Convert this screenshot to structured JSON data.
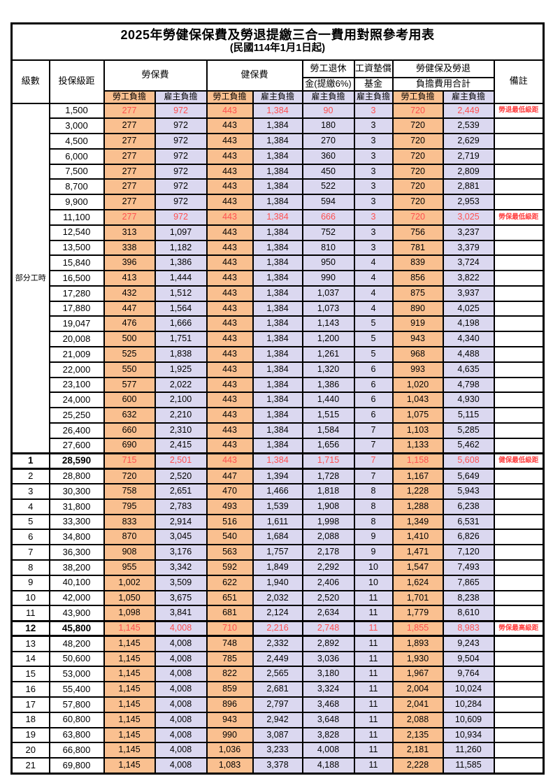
{
  "title": "2025年勞健保保費及勞退提繳三合一費用對照參考用表",
  "subtitle": "(民國114年1月1日起)",
  "colors": {
    "employee_column_bg": "#FAC090",
    "employer_column_bg": "#DBD8F0",
    "highlight_text": "#FF5050",
    "remark_text": "#FF4040",
    "border": "#000000",
    "background": "#FFFFFF"
  },
  "header": {
    "level": "級數",
    "bracket": "投保級距",
    "labor_insurance": "勞保費",
    "health_insurance": "健保費",
    "pension_line1": "勞工退休",
    "pension_line2": "金(提繳6%)",
    "fund_line1": "工資墊償",
    "fund_line2": "基金",
    "total_line1": "勞健保及勞退",
    "total_line2": "負擔費用合計",
    "remark": "備註",
    "employee": "勞工負擔",
    "employer": "雇主負擔"
  },
  "part_time": {
    "label": "部分工時",
    "span": 23
  },
  "chart_data": {
    "type": "table",
    "title": "2025年勞健保保費及勞退提繳三合一費用對照參考用表",
    "columns": [
      "級數",
      "投保級距",
      "勞保費-勞工負擔",
      "勞保費-雇主負擔",
      "健保費-勞工負擔",
      "健保費-雇主負擔",
      "勞工退休金(提繳6%)-雇主負擔",
      "工資墊償基金-雇主負擔",
      "合計-勞工負擔",
      "合計-雇主負擔",
      "備註"
    ]
  },
  "rows": [
    {
      "level": "",
      "bracket": "1,500",
      "fees": [
        "277",
        "972",
        "443",
        "1,384",
        "90",
        "3",
        "720",
        "2,449"
      ],
      "remark": "勞退最低級距",
      "red": true,
      "bold": false,
      "thick": false
    },
    {
      "level": "",
      "bracket": "3,000",
      "fees": [
        "277",
        "972",
        "443",
        "1,384",
        "180",
        "3",
        "720",
        "2,539"
      ],
      "remark": "",
      "red": false,
      "bold": false,
      "thick": false
    },
    {
      "level": "",
      "bracket": "4,500",
      "fees": [
        "277",
        "972",
        "443",
        "1,384",
        "270",
        "3",
        "720",
        "2,629"
      ],
      "remark": "",
      "red": false,
      "bold": false,
      "thick": false
    },
    {
      "level": "",
      "bracket": "6,000",
      "fees": [
        "277",
        "972",
        "443",
        "1,384",
        "360",
        "3",
        "720",
        "2,719"
      ],
      "remark": "",
      "red": false,
      "bold": false,
      "thick": false
    },
    {
      "level": "",
      "bracket": "7,500",
      "fees": [
        "277",
        "972",
        "443",
        "1,384",
        "450",
        "3",
        "720",
        "2,809"
      ],
      "remark": "",
      "red": false,
      "bold": false,
      "thick": false
    },
    {
      "level": "",
      "bracket": "8,700",
      "fees": [
        "277",
        "972",
        "443",
        "1,384",
        "522",
        "3",
        "720",
        "2,881"
      ],
      "remark": "",
      "red": false,
      "bold": false,
      "thick": false
    },
    {
      "level": "",
      "bracket": "9,900",
      "fees": [
        "277",
        "972",
        "443",
        "1,384",
        "594",
        "3",
        "720",
        "2,953"
      ],
      "remark": "",
      "red": false,
      "bold": false,
      "thick": false
    },
    {
      "level": "",
      "bracket": "11,100",
      "fees": [
        "277",
        "972",
        "443",
        "1,384",
        "666",
        "3",
        "720",
        "3,025"
      ],
      "remark": "勞保最低級距",
      "red": true,
      "bold": false,
      "thick": false
    },
    {
      "level": "",
      "bracket": "12,540",
      "fees": [
        "313",
        "1,097",
        "443",
        "1,384",
        "752",
        "3",
        "756",
        "3,237"
      ],
      "remark": "",
      "red": false,
      "bold": false,
      "thick": false
    },
    {
      "level": "",
      "bracket": "13,500",
      "fees": [
        "338",
        "1,182",
        "443",
        "1,384",
        "810",
        "3",
        "781",
        "3,379"
      ],
      "remark": "",
      "red": false,
      "bold": false,
      "thick": false
    },
    {
      "level": "",
      "bracket": "15,840",
      "fees": [
        "396",
        "1,386",
        "443",
        "1,384",
        "950",
        "4",
        "839",
        "3,724"
      ],
      "remark": "",
      "red": false,
      "bold": false,
      "thick": false
    },
    {
      "level": "",
      "bracket": "16,500",
      "fees": [
        "413",
        "1,444",
        "443",
        "1,384",
        "990",
        "4",
        "856",
        "3,822"
      ],
      "remark": "",
      "red": false,
      "bold": false,
      "thick": false
    },
    {
      "level": "",
      "bracket": "17,280",
      "fees": [
        "432",
        "1,512",
        "443",
        "1,384",
        "1,037",
        "4",
        "875",
        "3,937"
      ],
      "remark": "",
      "red": false,
      "bold": false,
      "thick": false
    },
    {
      "level": "",
      "bracket": "17,880",
      "fees": [
        "447",
        "1,564",
        "443",
        "1,384",
        "1,073",
        "4",
        "890",
        "4,025"
      ],
      "remark": "",
      "red": false,
      "bold": false,
      "thick": false
    },
    {
      "level": "",
      "bracket": "19,047",
      "fees": [
        "476",
        "1,666",
        "443",
        "1,384",
        "1,143",
        "5",
        "919",
        "4,198"
      ],
      "remark": "",
      "red": false,
      "bold": false,
      "thick": false
    },
    {
      "level": "",
      "bracket": "20,008",
      "fees": [
        "500",
        "1,751",
        "443",
        "1,384",
        "1,200",
        "5",
        "943",
        "4,340"
      ],
      "remark": "",
      "red": false,
      "bold": false,
      "thick": false
    },
    {
      "level": "",
      "bracket": "21,009",
      "fees": [
        "525",
        "1,838",
        "443",
        "1,384",
        "1,261",
        "5",
        "968",
        "4,488"
      ],
      "remark": "",
      "red": false,
      "bold": false,
      "thick": false
    },
    {
      "level": "",
      "bracket": "22,000",
      "fees": [
        "550",
        "1,925",
        "443",
        "1,384",
        "1,320",
        "6",
        "993",
        "4,635"
      ],
      "remark": "",
      "red": false,
      "bold": false,
      "thick": false
    },
    {
      "level": "",
      "bracket": "23,100",
      "fees": [
        "577",
        "2,022",
        "443",
        "1,384",
        "1,386",
        "6",
        "1,020",
        "4,798"
      ],
      "remark": "",
      "red": false,
      "bold": false,
      "thick": false
    },
    {
      "level": "",
      "bracket": "24,000",
      "fees": [
        "600",
        "2,100",
        "443",
        "1,384",
        "1,440",
        "6",
        "1,043",
        "4,930"
      ],
      "remark": "",
      "red": false,
      "bold": false,
      "thick": false
    },
    {
      "level": "",
      "bracket": "25,250",
      "fees": [
        "632",
        "2,210",
        "443",
        "1,384",
        "1,515",
        "6",
        "1,075",
        "5,115"
      ],
      "remark": "",
      "red": false,
      "bold": false,
      "thick": false
    },
    {
      "level": "",
      "bracket": "26,400",
      "fees": [
        "660",
        "2,310",
        "443",
        "1,384",
        "1,584",
        "7",
        "1,103",
        "5,285"
      ],
      "remark": "",
      "red": false,
      "bold": false,
      "thick": false
    },
    {
      "level": "",
      "bracket": "27,600",
      "fees": [
        "690",
        "2,415",
        "443",
        "1,384",
        "1,656",
        "7",
        "1,133",
        "5,462"
      ],
      "remark": "",
      "red": false,
      "bold": false,
      "thick": false
    },
    {
      "level": "1",
      "bracket": "28,590",
      "fees": [
        "715",
        "2,501",
        "443",
        "1,384",
        "1,715",
        "7",
        "1,158",
        "5,608"
      ],
      "remark": "健保最低級距",
      "red": true,
      "bold": true,
      "thick": true
    },
    {
      "level": "2",
      "bracket": "28,800",
      "fees": [
        "720",
        "2,520",
        "447",
        "1,394",
        "1,728",
        "7",
        "1,167",
        "5,649"
      ],
      "remark": "",
      "red": false,
      "bold": false,
      "thick": false
    },
    {
      "level": "3",
      "bracket": "30,300",
      "fees": [
        "758",
        "2,651",
        "470",
        "1,466",
        "1,818",
        "8",
        "1,228",
        "5,943"
      ],
      "remark": "",
      "red": false,
      "bold": false,
      "thick": false
    },
    {
      "level": "4",
      "bracket": "31,800",
      "fees": [
        "795",
        "2,783",
        "493",
        "1,539",
        "1,908",
        "8",
        "1,288",
        "6,238"
      ],
      "remark": "",
      "red": false,
      "bold": false,
      "thick": false
    },
    {
      "level": "5",
      "bracket": "33,300",
      "fees": [
        "833",
        "2,914",
        "516",
        "1,611",
        "1,998",
        "8",
        "1,349",
        "6,531"
      ],
      "remark": "",
      "red": false,
      "bold": false,
      "thick": false
    },
    {
      "level": "6",
      "bracket": "34,800",
      "fees": [
        "870",
        "3,045",
        "540",
        "1,684",
        "2,088",
        "9",
        "1,410",
        "6,826"
      ],
      "remark": "",
      "red": false,
      "bold": false,
      "thick": false
    },
    {
      "level": "7",
      "bracket": "36,300",
      "fees": [
        "908",
        "3,176",
        "563",
        "1,757",
        "2,178",
        "9",
        "1,471",
        "7,120"
      ],
      "remark": "",
      "red": false,
      "bold": false,
      "thick": false
    },
    {
      "level": "8",
      "bracket": "38,200",
      "fees": [
        "955",
        "3,342",
        "592",
        "1,849",
        "2,292",
        "10",
        "1,547",
        "7,493"
      ],
      "remark": "",
      "red": false,
      "bold": false,
      "thick": false
    },
    {
      "level": "9",
      "bracket": "40,100",
      "fees": [
        "1,002",
        "3,509",
        "622",
        "1,940",
        "2,406",
        "10",
        "1,624",
        "7,865"
      ],
      "remark": "",
      "red": false,
      "bold": false,
      "thick": false
    },
    {
      "level": "10",
      "bracket": "42,000",
      "fees": [
        "1,050",
        "3,675",
        "651",
        "2,032",
        "2,520",
        "11",
        "1,701",
        "8,238"
      ],
      "remark": "",
      "red": false,
      "bold": false,
      "thick": false
    },
    {
      "level": "11",
      "bracket": "43,900",
      "fees": [
        "1,098",
        "3,841",
        "681",
        "2,124",
        "2,634",
        "11",
        "1,779",
        "8,610"
      ],
      "remark": "",
      "red": false,
      "bold": false,
      "thick": false
    },
    {
      "level": "12",
      "bracket": "45,800",
      "fees": [
        "1,145",
        "4,008",
        "710",
        "2,216",
        "2,748",
        "11",
        "1,855",
        "8,983"
      ],
      "remark": "勞保最高級距",
      "red": true,
      "bold": true,
      "thick": true
    },
    {
      "level": "13",
      "bracket": "48,200",
      "fees": [
        "1,145",
        "4,008",
        "748",
        "2,332",
        "2,892",
        "11",
        "1,893",
        "9,243"
      ],
      "remark": "",
      "red": false,
      "bold": false,
      "thick": false
    },
    {
      "level": "14",
      "bracket": "50,600",
      "fees": [
        "1,145",
        "4,008",
        "785",
        "2,449",
        "3,036",
        "11",
        "1,930",
        "9,504"
      ],
      "remark": "",
      "red": false,
      "bold": false,
      "thick": false
    },
    {
      "level": "15",
      "bracket": "53,000",
      "fees": [
        "1,145",
        "4,008",
        "822",
        "2,565",
        "3,180",
        "11",
        "1,967",
        "9,764"
      ],
      "remark": "",
      "red": false,
      "bold": false,
      "thick": false
    },
    {
      "level": "16",
      "bracket": "55,400",
      "fees": [
        "1,145",
        "4,008",
        "859",
        "2,681",
        "3,324",
        "11",
        "2,004",
        "10,024"
      ],
      "remark": "",
      "red": false,
      "bold": false,
      "thick": false
    },
    {
      "level": "17",
      "bracket": "57,800",
      "fees": [
        "1,145",
        "4,008",
        "896",
        "2,797",
        "3,468",
        "11",
        "2,041",
        "10,284"
      ],
      "remark": "",
      "red": false,
      "bold": false,
      "thick": false
    },
    {
      "level": "18",
      "bracket": "60,800",
      "fees": [
        "1,145",
        "4,008",
        "943",
        "2,942",
        "3,648",
        "11",
        "2,088",
        "10,609"
      ],
      "remark": "",
      "red": false,
      "bold": false,
      "thick": false
    },
    {
      "level": "19",
      "bracket": "63,800",
      "fees": [
        "1,145",
        "4,008",
        "990",
        "3,087",
        "3,828",
        "11",
        "2,135",
        "10,934"
      ],
      "remark": "",
      "red": false,
      "bold": false,
      "thick": false
    },
    {
      "level": "20",
      "bracket": "66,800",
      "fees": [
        "1,145",
        "4,008",
        "1,036",
        "3,233",
        "4,008",
        "11",
        "2,181",
        "11,260"
      ],
      "remark": "",
      "red": false,
      "bold": false,
      "thick": false
    },
    {
      "level": "21",
      "bracket": "69,800",
      "fees": [
        "1,145",
        "4,008",
        "1,083",
        "3,378",
        "4,188",
        "11",
        "2,228",
        "11,585"
      ],
      "remark": "",
      "red": false,
      "bold": false,
      "thick": false
    }
  ]
}
